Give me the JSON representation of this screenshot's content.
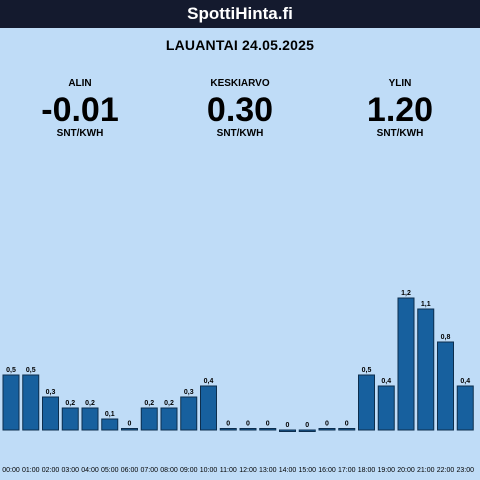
{
  "header": {
    "title": "SpottiHinta.fi"
  },
  "date": "LAUANTAI 24.05.2025",
  "stats": {
    "min": {
      "label": "ALIN",
      "value": "-0.01",
      "unit": "SNT/KWH"
    },
    "avg": {
      "label": "KESKIARVO",
      "value": "0.30",
      "unit": "SNT/KWH"
    },
    "max": {
      "label": "YLIN",
      "value": "1.20",
      "unit": "SNT/KWH"
    }
  },
  "chart_data": {
    "type": "bar",
    "categories": [
      "00:00",
      "01:00",
      "02:00",
      "03:00",
      "04:00",
      "05:00",
      "06:00",
      "07:00",
      "08:00",
      "09:00",
      "10:00",
      "11:00",
      "12:00",
      "13:00",
      "14:00",
      "15:00",
      "16:00",
      "17:00",
      "18:00",
      "19:00",
      "20:00",
      "21:00",
      "22:00",
      "23:00"
    ],
    "values": [
      0.5,
      0.5,
      0.3,
      0.2,
      0.2,
      0.1,
      0.0,
      0.2,
      0.2,
      0.3,
      0.4,
      0.01,
      0.0,
      0.0,
      -0.01,
      -0.01,
      0.0,
      0.01,
      0.5,
      0.4,
      1.2,
      1.1,
      0.8,
      0.4
    ],
    "labels": [
      "0,5",
      "0,5",
      "0,3",
      "0,2",
      "0,2",
      "0,1",
      "0",
      "0,2",
      "0,2",
      "0,3",
      "0,4",
      "0",
      "0",
      "0",
      "0",
      "0",
      "0",
      "0",
      "0,5",
      "0,4",
      "1,2",
      "1,1",
      "0,8",
      "0,4"
    ],
    "ylim": [
      -0.01,
      1.2
    ],
    "colors": {
      "bar": "#17609e",
      "background": "#bfdcf7"
    }
  }
}
